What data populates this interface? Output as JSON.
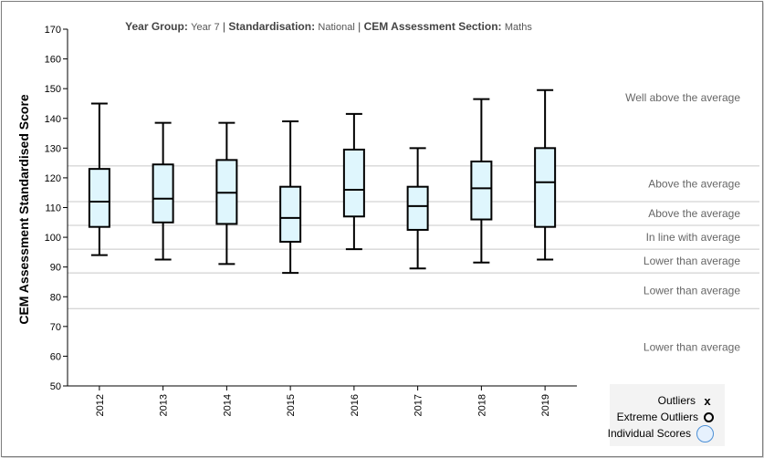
{
  "header": {
    "year_group_label": "Year Group:",
    "year_group_value": "Year 7",
    "standardisation_label": "Standardisation:",
    "standardisation_value": "National",
    "section_label": "CEM Assessment Section:",
    "section_value": "Maths",
    "separator": "|"
  },
  "legend": {
    "outliers_label": "Outliers",
    "extreme_label": "Extreme Outliers",
    "individual_label": "Individual Scores",
    "outliers_symbol": "x"
  },
  "chart_data": {
    "type": "boxplot",
    "ylabel": "CEM Assessment Standardised Score",
    "xlabel": "",
    "ylim": [
      50,
      170
    ],
    "yticks": [
      50,
      60,
      70,
      80,
      90,
      100,
      110,
      120,
      130,
      140,
      150,
      160,
      170
    ],
    "categories": [
      "2012",
      "2013",
      "2014",
      "2015",
      "2016",
      "2017",
      "2018",
      "2019"
    ],
    "boxes": [
      {
        "min": 94,
        "q1": 103.5,
        "median": 112,
        "q3": 123,
        "max": 145
      },
      {
        "min": 92.5,
        "q1": 105,
        "median": 113,
        "q3": 124.5,
        "max": 138.5
      },
      {
        "min": 91,
        "q1": 104.5,
        "median": 115,
        "q3": 126,
        "max": 138.5
      },
      {
        "min": 88,
        "q1": 98.5,
        "median": 106.5,
        "q3": 117,
        "max": 139
      },
      {
        "min": 96,
        "q1": 107,
        "median": 116,
        "q3": 129.5,
        "max": 141.5
      },
      {
        "min": 89.5,
        "q1": 102.5,
        "median": 110.5,
        "q3": 117,
        "max": 130
      },
      {
        "min": 91.5,
        "q1": 106,
        "median": 116.5,
        "q3": 125.5,
        "max": 146.5
      },
      {
        "min": 92.5,
        "q1": 103.5,
        "median": 118.5,
        "q3": 130,
        "max": 149.5
      }
    ],
    "bands": [
      {
        "label": "Well above the average",
        "low": 124,
        "high": 170
      },
      {
        "label": "Above the average",
        "low": 112,
        "high": 124
      },
      {
        "label": "Above the average",
        "low": 104,
        "high": 112
      },
      {
        "label": "In line with average",
        "low": 96,
        "high": 104
      },
      {
        "label": "Lower than average",
        "low": 88,
        "high": 96
      },
      {
        "label": "Lower than average",
        "low": 76,
        "high": 88
      },
      {
        "label": "Lower than average",
        "low": 50,
        "high": 76
      }
    ],
    "band_boundaries": [
      124,
      112,
      104,
      96,
      88,
      76
    ],
    "colors": {
      "box_fill": "#dff6fd",
      "box_stroke": "#000000",
      "band_line": "#c8c8c8",
      "band_text": "#666666",
      "axis": "#000000"
    },
    "grid": false
  }
}
